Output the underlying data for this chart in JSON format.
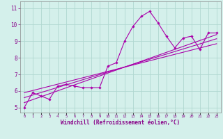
{
  "bg_color": "#d4f0eb",
  "grid_color": "#b0d8d0",
  "line_color": "#aa00aa",
  "marker_color": "#aa00aa",
  "xlabel": "Windchill (Refroidissement éolien,°C)",
  "ylabel_ticks": [
    5,
    6,
    7,
    8,
    9,
    10,
    11
  ],
  "xtick_labels": [
    "0",
    "1",
    "2",
    "3",
    "4",
    "5",
    "6",
    "7",
    "8",
    "9",
    "10",
    "11",
    "12",
    "13",
    "14",
    "15",
    "16",
    "17",
    "18",
    "19",
    "20",
    "21",
    "22",
    "23"
  ],
  "xlim": [
    -0.5,
    23.5
  ],
  "ylim": [
    4.7,
    11.4
  ],
  "series1_x": [
    0,
    1,
    2,
    3,
    4,
    5,
    6,
    7,
    8,
    9,
    10,
    11,
    12,
    13,
    14,
    15,
    16,
    17,
    18,
    19,
    20,
    21,
    22,
    23
  ],
  "series1_y": [
    5.0,
    5.9,
    5.7,
    5.5,
    6.3,
    6.4,
    6.3,
    6.2,
    6.2,
    6.2,
    7.5,
    7.7,
    9.0,
    9.9,
    10.5,
    10.8,
    10.1,
    9.3,
    8.6,
    9.2,
    9.3,
    8.5,
    9.5,
    9.5
  ],
  "series2_x": [
    0,
    23
  ],
  "series2_y": [
    5.3,
    9.4
  ],
  "series3_x": [
    0,
    23
  ],
  "series3_y": [
    5.6,
    9.15
  ],
  "series4_x": [
    0,
    23
  ],
  "series4_y": [
    5.9,
    8.85
  ]
}
